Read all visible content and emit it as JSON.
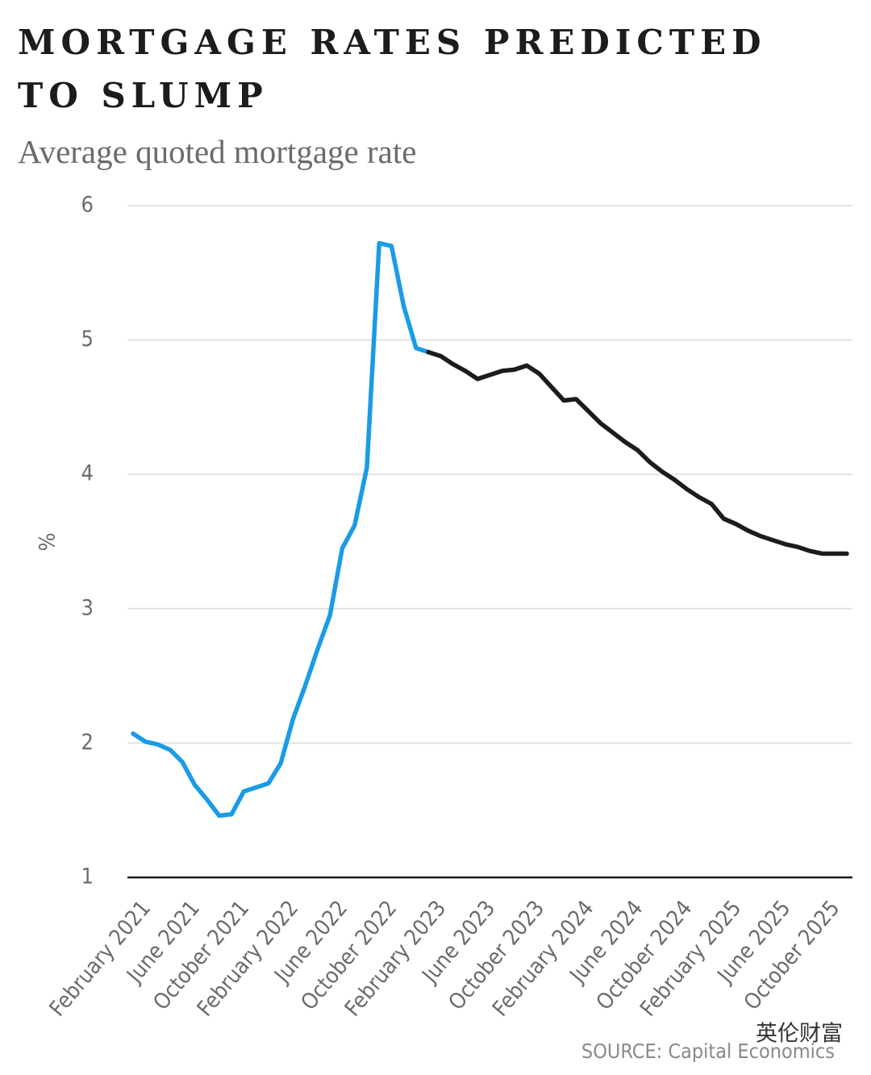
{
  "chart_data": {
    "type": "line",
    "title": "MORTGAGE RATES PREDICTED TO SLUMP",
    "subtitle": "Average quoted mortgage rate",
    "y_label": "%",
    "source": "SOURCE: Capital Economics",
    "watermark": "英伦财富",
    "categories": [
      "February 2021",
      null,
      null,
      null,
      "June 2021",
      null,
      null,
      null,
      "October 2021",
      null,
      null,
      null,
      "February 2022",
      null,
      null,
      null,
      "June 2022",
      null,
      null,
      null,
      "October 2022",
      null,
      null,
      null,
      "February 2023",
      null,
      null,
      null,
      "June 2023",
      null,
      null,
      null,
      "October 2023",
      null,
      null,
      null,
      "February 2024",
      null,
      null,
      null,
      "June 2024",
      null,
      null,
      null,
      "October 2024",
      null,
      null,
      null,
      "February 2025",
      null,
      null,
      null,
      "June 2025",
      null,
      null,
      null,
      "October 2025",
      null,
      null
    ],
    "series": [
      {
        "color": "#1a9be6",
        "values": [
          2.07,
          2.01,
          1.99,
          1.95,
          1.86,
          1.69,
          1.58,
          1.46,
          1.47,
          1.64,
          1.67,
          1.7,
          1.85,
          2.18,
          2.43,
          2.7,
          2.95,
          3.45,
          3.62,
          4.05,
          5.72,
          5.7,
          5.25,
          4.94,
          4.91,
          null,
          null,
          null,
          null,
          null,
          null,
          null,
          null,
          null,
          null,
          null,
          null,
          null,
          null,
          null,
          null,
          null,
          null,
          null,
          null,
          null,
          null,
          null,
          null,
          null,
          null,
          null,
          null,
          null,
          null,
          null,
          null,
          null,
          null
        ]
      },
      {
        "color": "#1c1c1c",
        "values": [
          null,
          null,
          null,
          null,
          null,
          null,
          null,
          null,
          null,
          null,
          null,
          null,
          null,
          null,
          null,
          null,
          null,
          null,
          null,
          null,
          null,
          null,
          null,
          null,
          4.91,
          4.88,
          4.82,
          4.77,
          4.71,
          4.74,
          4.77,
          4.78,
          4.81,
          4.75,
          4.65,
          4.55,
          4.56,
          4.47,
          4.38,
          4.31,
          4.24,
          4.18,
          4.09,
          4.02,
          3.96,
          3.89,
          3.83,
          3.78,
          3.67,
          3.63,
          3.58,
          3.54,
          3.51,
          3.48,
          3.46,
          3.43,
          3.41,
          3.41,
          3.41
        ]
      }
    ],
    "ylim": [
      1,
      6
    ],
    "yticks": [
      1,
      2,
      3,
      4,
      5,
      6
    ],
    "grid": true
  }
}
